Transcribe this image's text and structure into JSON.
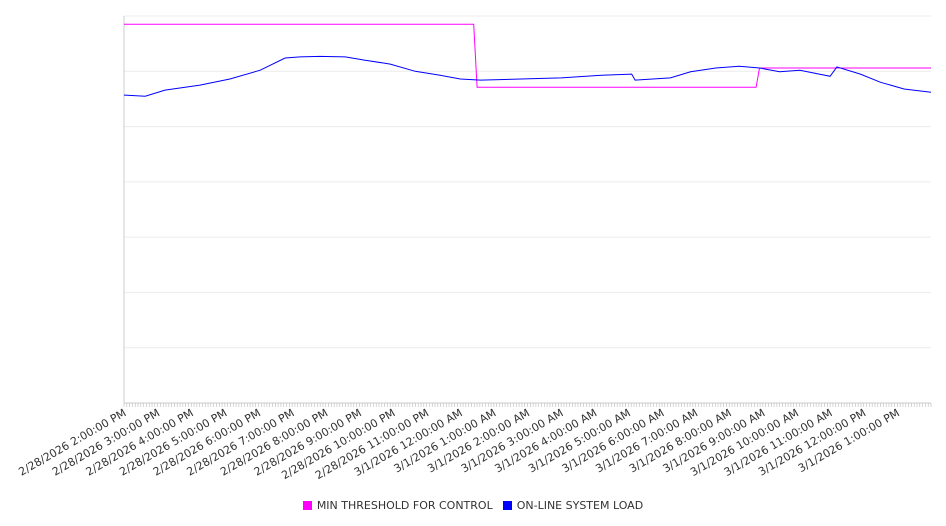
{
  "chart_data": {
    "type": "line",
    "title": "",
    "xlabel": "",
    "ylabel": "",
    "x_unit": "hours since 2/28/2026 2:00:00 PM",
    "xlim": [
      0,
      24
    ],
    "ylim": [
      0,
      7
    ],
    "y_ticks_labeled": false,
    "grid": true,
    "legend_position": "bottom",
    "x_tick_labels": [
      "2/28/2026 2:00:00 PM",
      "2/28/2026 3:00:00 PM",
      "2/28/2026 4:00:00 PM",
      "2/28/2026 5:00:00 PM",
      "2/28/2026 6:00:00 PM",
      "2/28/2026 7:00:00 PM",
      "2/28/2026 8:00:00 PM",
      "2/28/2026 9:00:00 PM",
      "2/28/2026 10:00:00 PM",
      "2/28/2026 11:00:00 PM",
      "3/1/2026 12:00:00 AM",
      "3/1/2026 1:00:00 AM",
      "3/1/2026 2:00:00 AM",
      "3/1/2026 3:00:00 AM",
      "3/1/2026 4:00:00 AM",
      "3/1/2026 5:00:00 AM",
      "3/1/2026 6:00:00 AM",
      "3/1/2026 7:00:00 AM",
      "3/1/2026 8:00:00 AM",
      "3/1/2026 9:00:00 AM",
      "3/1/2026 10:00:00 AM",
      "3/1/2026 11:00:00 AM",
      "3/1/2026 12:00:00 PM",
      "3/1/2026 1:00:00 PM"
    ],
    "series": [
      {
        "name": "MIN THRESHOLD FOR CONTROL",
        "color": "#ff00ff",
        "x": [
          0,
          10.4,
          10.5,
          18.8,
          18.9,
          24
        ],
        "y": [
          6.85,
          6.85,
          5.71,
          5.71,
          6.06,
          6.06
        ]
      },
      {
        "name": "ON-LINE SYSTEM LOAD",
        "color": "#0000ff",
        "x": [
          0,
          0.63,
          1.22,
          2.26,
          3.15,
          4.05,
          4.79,
          5.24,
          5.83,
          6.58,
          7.17,
          7.92,
          8.66,
          9.4,
          10.0,
          10.6,
          11.8,
          13.0,
          14.2,
          15.1,
          15.2,
          16.25,
          16.85,
          17.6,
          18.3,
          18.9,
          19.5,
          20.1,
          21.0,
          21.2,
          21.9,
          22.5,
          23.2,
          24.0
        ],
        "y": [
          5.57,
          5.55,
          5.66,
          5.75,
          5.86,
          6.02,
          6.24,
          6.26,
          6.27,
          6.26,
          6.2,
          6.13,
          6.0,
          5.93,
          5.86,
          5.84,
          5.86,
          5.88,
          5.93,
          5.95,
          5.84,
          5.88,
          5.99,
          6.06,
          6.09,
          6.06,
          5.99,
          6.02,
          5.91,
          6.08,
          5.95,
          5.8,
          5.68,
          5.62
        ]
      }
    ]
  }
}
